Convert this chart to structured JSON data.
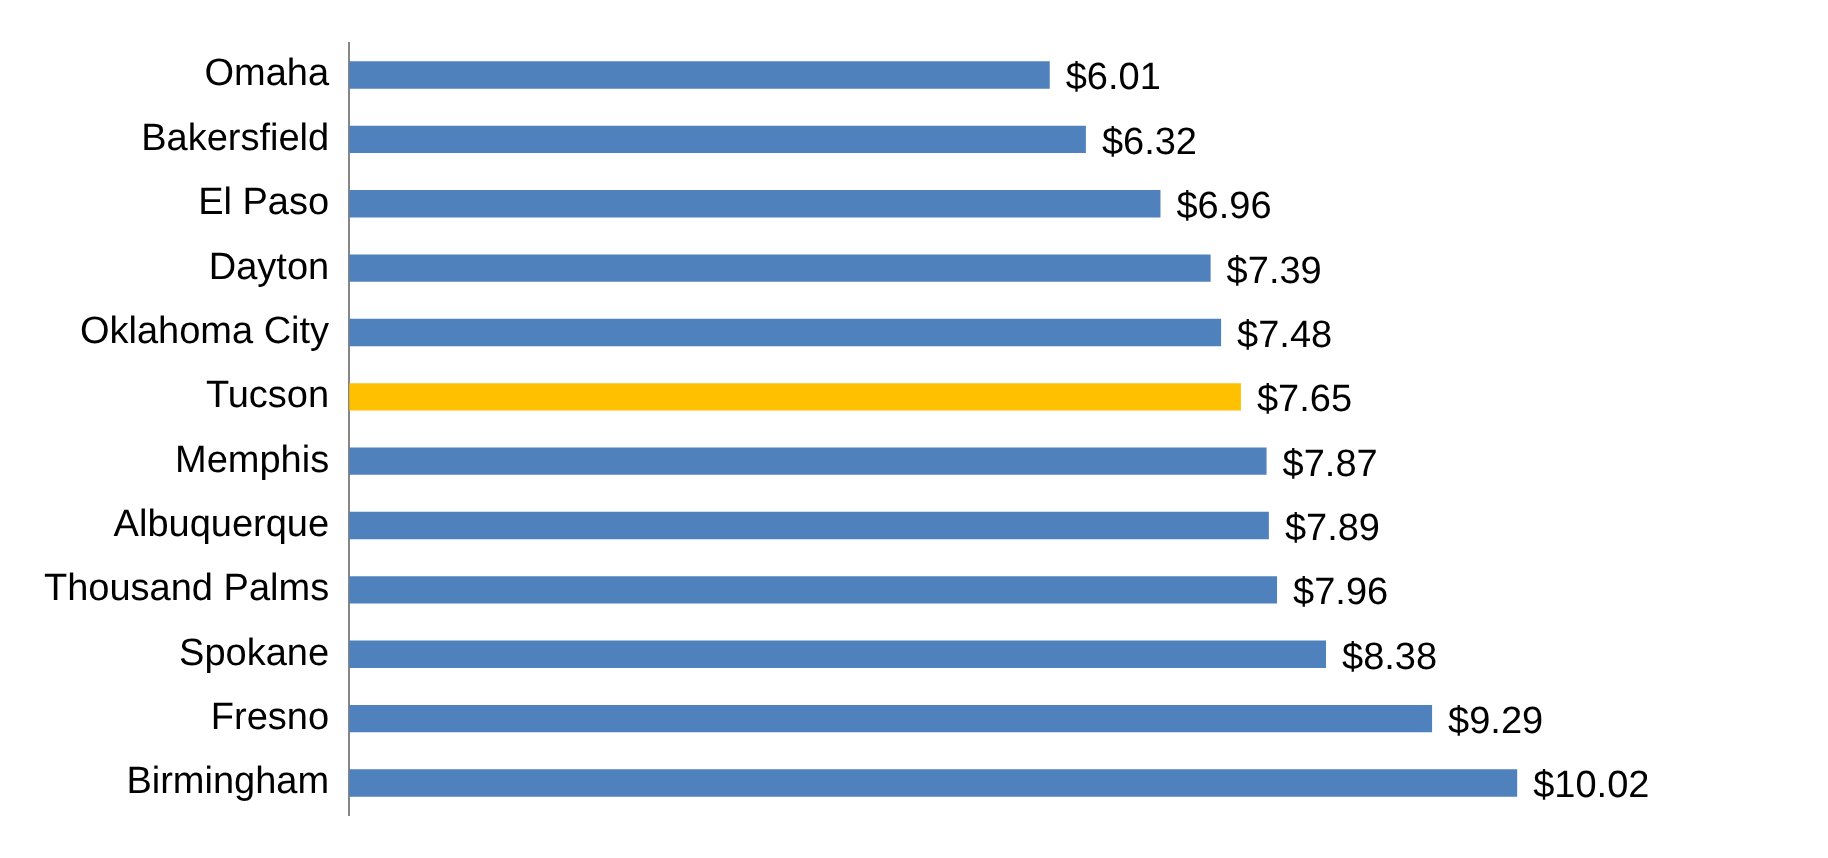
{
  "chart_data": {
    "type": "bar",
    "orientation": "horizontal",
    "categories": [
      "Omaha",
      "Bakersfield",
      "El Paso",
      "Dayton",
      "Oklahoma City",
      "Tucson",
      "Memphis",
      "Albuquerque",
      "Thousand Palms",
      "Spokane",
      "Fresno",
      "Birmingham"
    ],
    "values": [
      6.01,
      6.32,
      6.96,
      7.39,
      7.48,
      7.65,
      7.87,
      7.89,
      7.96,
      8.38,
      9.29,
      10.02
    ],
    "colors": [
      "#4f81bd",
      "#4f81bd",
      "#4f81bd",
      "#4f81bd",
      "#4f81bd",
      "#ffc000",
      "#4f81bd",
      "#4f81bd",
      "#4f81bd",
      "#4f81bd",
      "#4f81bd",
      "#4f81bd"
    ],
    "value_labels": [
      "$6.01",
      "$6.32",
      "$6.96",
      "$7.39",
      "$7.48",
      "$7.65",
      "$7.87",
      "$7.89",
      "$7.96",
      "$8.38",
      "$9.29",
      "$10.02"
    ],
    "legend": false
  }
}
